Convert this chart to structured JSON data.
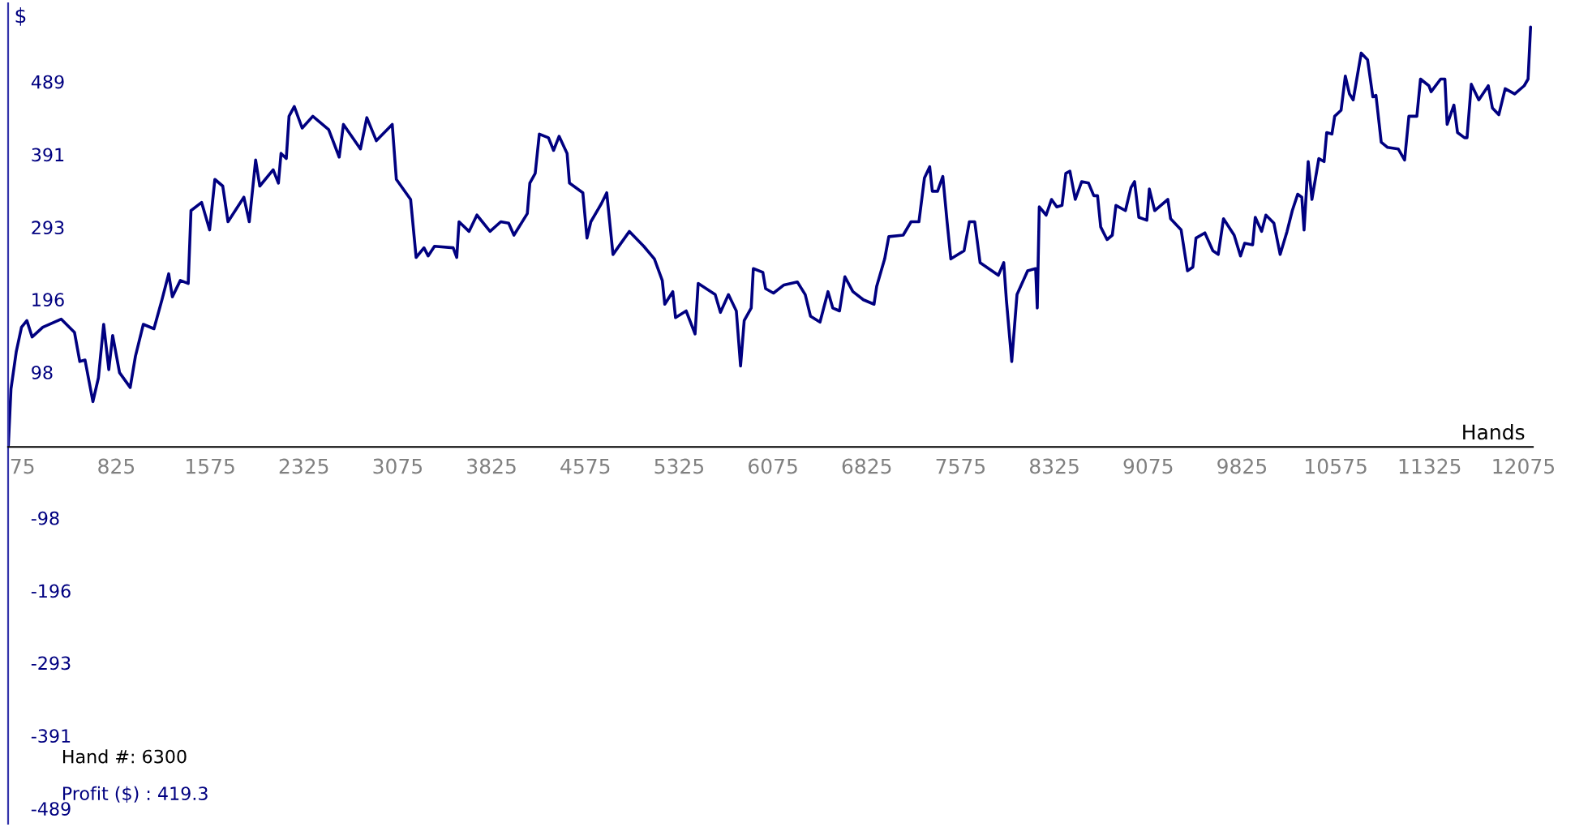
{
  "chart_data": {
    "type": "line",
    "xlabel": "Hands",
    "ylabel": "$",
    "annotations": [
      "Hand #: 6300",
      "Profit ($) : 419.3"
    ],
    "xlim": [
      -40,
      12150
    ],
    "ylim": [
      -507,
      597
    ],
    "xticks": [
      75,
      825,
      1575,
      2325,
      3075,
      3825,
      4575,
      5325,
      6075,
      6825,
      7575,
      8325,
      9075,
      9825,
      10575,
      11325,
      12075
    ],
    "yticks": [
      -489,
      -391,
      -293,
      -196,
      -98,
      98,
      196,
      293,
      391,
      489
    ],
    "x": [
      -38,
      -17,
      25,
      67,
      110,
      152,
      237,
      384,
      491,
      533,
      575,
      638,
      682,
      724,
      765,
      796,
      851,
      936,
      978,
      1041,
      1126,
      1190,
      1244,
      1273,
      1337,
      1400,
      1422,
      1507,
      1571,
      1613,
      1676,
      1718,
      1845,
      1888,
      1939,
      1972,
      2079,
      2121,
      2142,
      2184,
      2206,
      2248,
      2311,
      2396,
      2523,
      2607,
      2641,
      2777,
      2828,
      2904,
      3031,
      3064,
      3178,
      3222,
      3285,
      3318,
      3369,
      3518,
      3547,
      3565,
      3645,
      3708,
      3813,
      3899,
      3962,
      4004,
      4111,
      4131,
      4174,
      4207,
      4280,
      4321,
      4365,
      4429,
      4448,
      4555,
      4588,
      4619,
      4702,
      4746,
      4796,
      4851,
      4927,
      5042,
      5127,
      5190,
      5210,
      5274,
      5296,
      5381,
      5452,
      5477,
      5613,
      5655,
      5719,
      5782,
      5816,
      5845,
      5901,
      5918,
      5994,
      6016,
      6079,
      6163,
      6270,
      6333,
      6375,
      6451,
      6515,
      6553,
      6607,
      6650,
      6714,
      6798,
      6883,
      6904,
      6968,
      7001,
      7116,
      7179,
      7242,
      7286,
      7328,
      7349,
      7391,
      7433,
      7467,
      7497,
      7603,
      7645,
      7688,
      7731,
      7877,
      7920,
      7941,
      7984,
      8026,
      8111,
      8175,
      8188,
      8204,
      8259,
      8302,
      8344,
      8386,
      8416,
      8449,
      8492,
      8543,
      8598,
      8640,
      8670,
      8695,
      8746,
      8788,
      8817,
      8893,
      8937,
      8966,
      9000,
      9064,
      9084,
      9127,
      9232,
      9254,
      9338,
      9389,
      9432,
      9457,
      9528,
      9592,
      9635,
      9677,
      9762,
      9813,
      9846,
      9910,
      9931,
      9982,
      10016,
      10080,
      10130,
      10185,
      10227,
      10270,
      10303,
      10321,
      10354,
      10384,
      10439,
      10481,
      10502,
      10544,
      10566,
      10617,
      10651,
      10684,
      10714,
      10778,
      10829,
      10871,
      10896,
      10938,
      10989,
      11074,
      11125,
      11159,
      11223,
      11252,
      11319,
      11337,
      11413,
      11447,
      11465,
      11519,
      11548,
      11604,
      11624,
      11658,
      11718,
      11794,
      11827,
      11878,
      11929,
      12005,
      12081,
      12112,
      12132
    ],
    "series": [
      {
        "color": "#000080",
        "values": [
          2,
          78,
          128,
          161,
          170,
          148,
          161,
          172,
          154,
          115,
          117,
          61,
          93,
          165,
          104,
          150,
          100,
          80,
          122,
          165,
          159,
          198,
          233,
          202,
          224,
          220,
          318,
          329,
          292,
          360,
          351,
          303,
          336,
          303,
          386,
          351,
          373,
          355,
          395,
          388,
          445,
          458,
          429,
          445,
          427,
          390,
          434,
          401,
          443,
          412,
          434,
          360,
          333,
          255,
          268,
          257,
          270,
          268,
          255,
          303,
          290,
          312,
          290,
          303,
          301,
          285,
          314,
          355,
          368,
          421,
          416,
          399,
          418,
          395,
          355,
          342,
          281,
          303,
          327,
          342,
          259,
          272,
          290,
          270,
          253,
          224,
          192,
          209,
          174,
          183,
          152,
          220,
          205,
          181,
          205,
          183,
          109,
          170,
          187,
          240,
          235,
          213,
          207,
          218,
          222,
          205,
          176,
          168,
          209,
          187,
          183,
          229,
          209,
          198,
          192,
          216,
          253,
          283,
          285,
          303,
          303,
          362,
          377,
          344,
          344,
          364,
          303,
          253,
          264,
          303,
          303,
          248,
          231,
          248,
          198,
          115,
          205,
          237,
          240,
          187,
          323,
          312,
          333,
          323,
          325,
          368,
          371,
          333,
          357,
          355,
          338,
          338,
          296,
          279,
          285,
          325,
          318,
          349,
          357,
          309,
          305,
          347,
          318,
          333,
          307,
          292,
          237,
          242,
          281,
          288,
          264,
          259,
          307,
          285,
          257,
          274,
          272,
          309,
          290,
          312,
          301,
          259,
          290,
          318,
          340,
          336,
          292,
          384,
          333,
          388,
          384,
          423,
          421,
          445,
          453,
          499,
          475,
          467,
          530,
          521,
          471,
          473,
          410,
          403,
          401,
          386,
          445,
          445,
          495,
          486,
          478,
          495,
          495,
          434,
          460,
          423,
          416,
          416,
          488,
          467,
          486,
          456,
          447,
          482,
          475,
          486,
          495,
          565
        ]
      }
    ]
  }
}
